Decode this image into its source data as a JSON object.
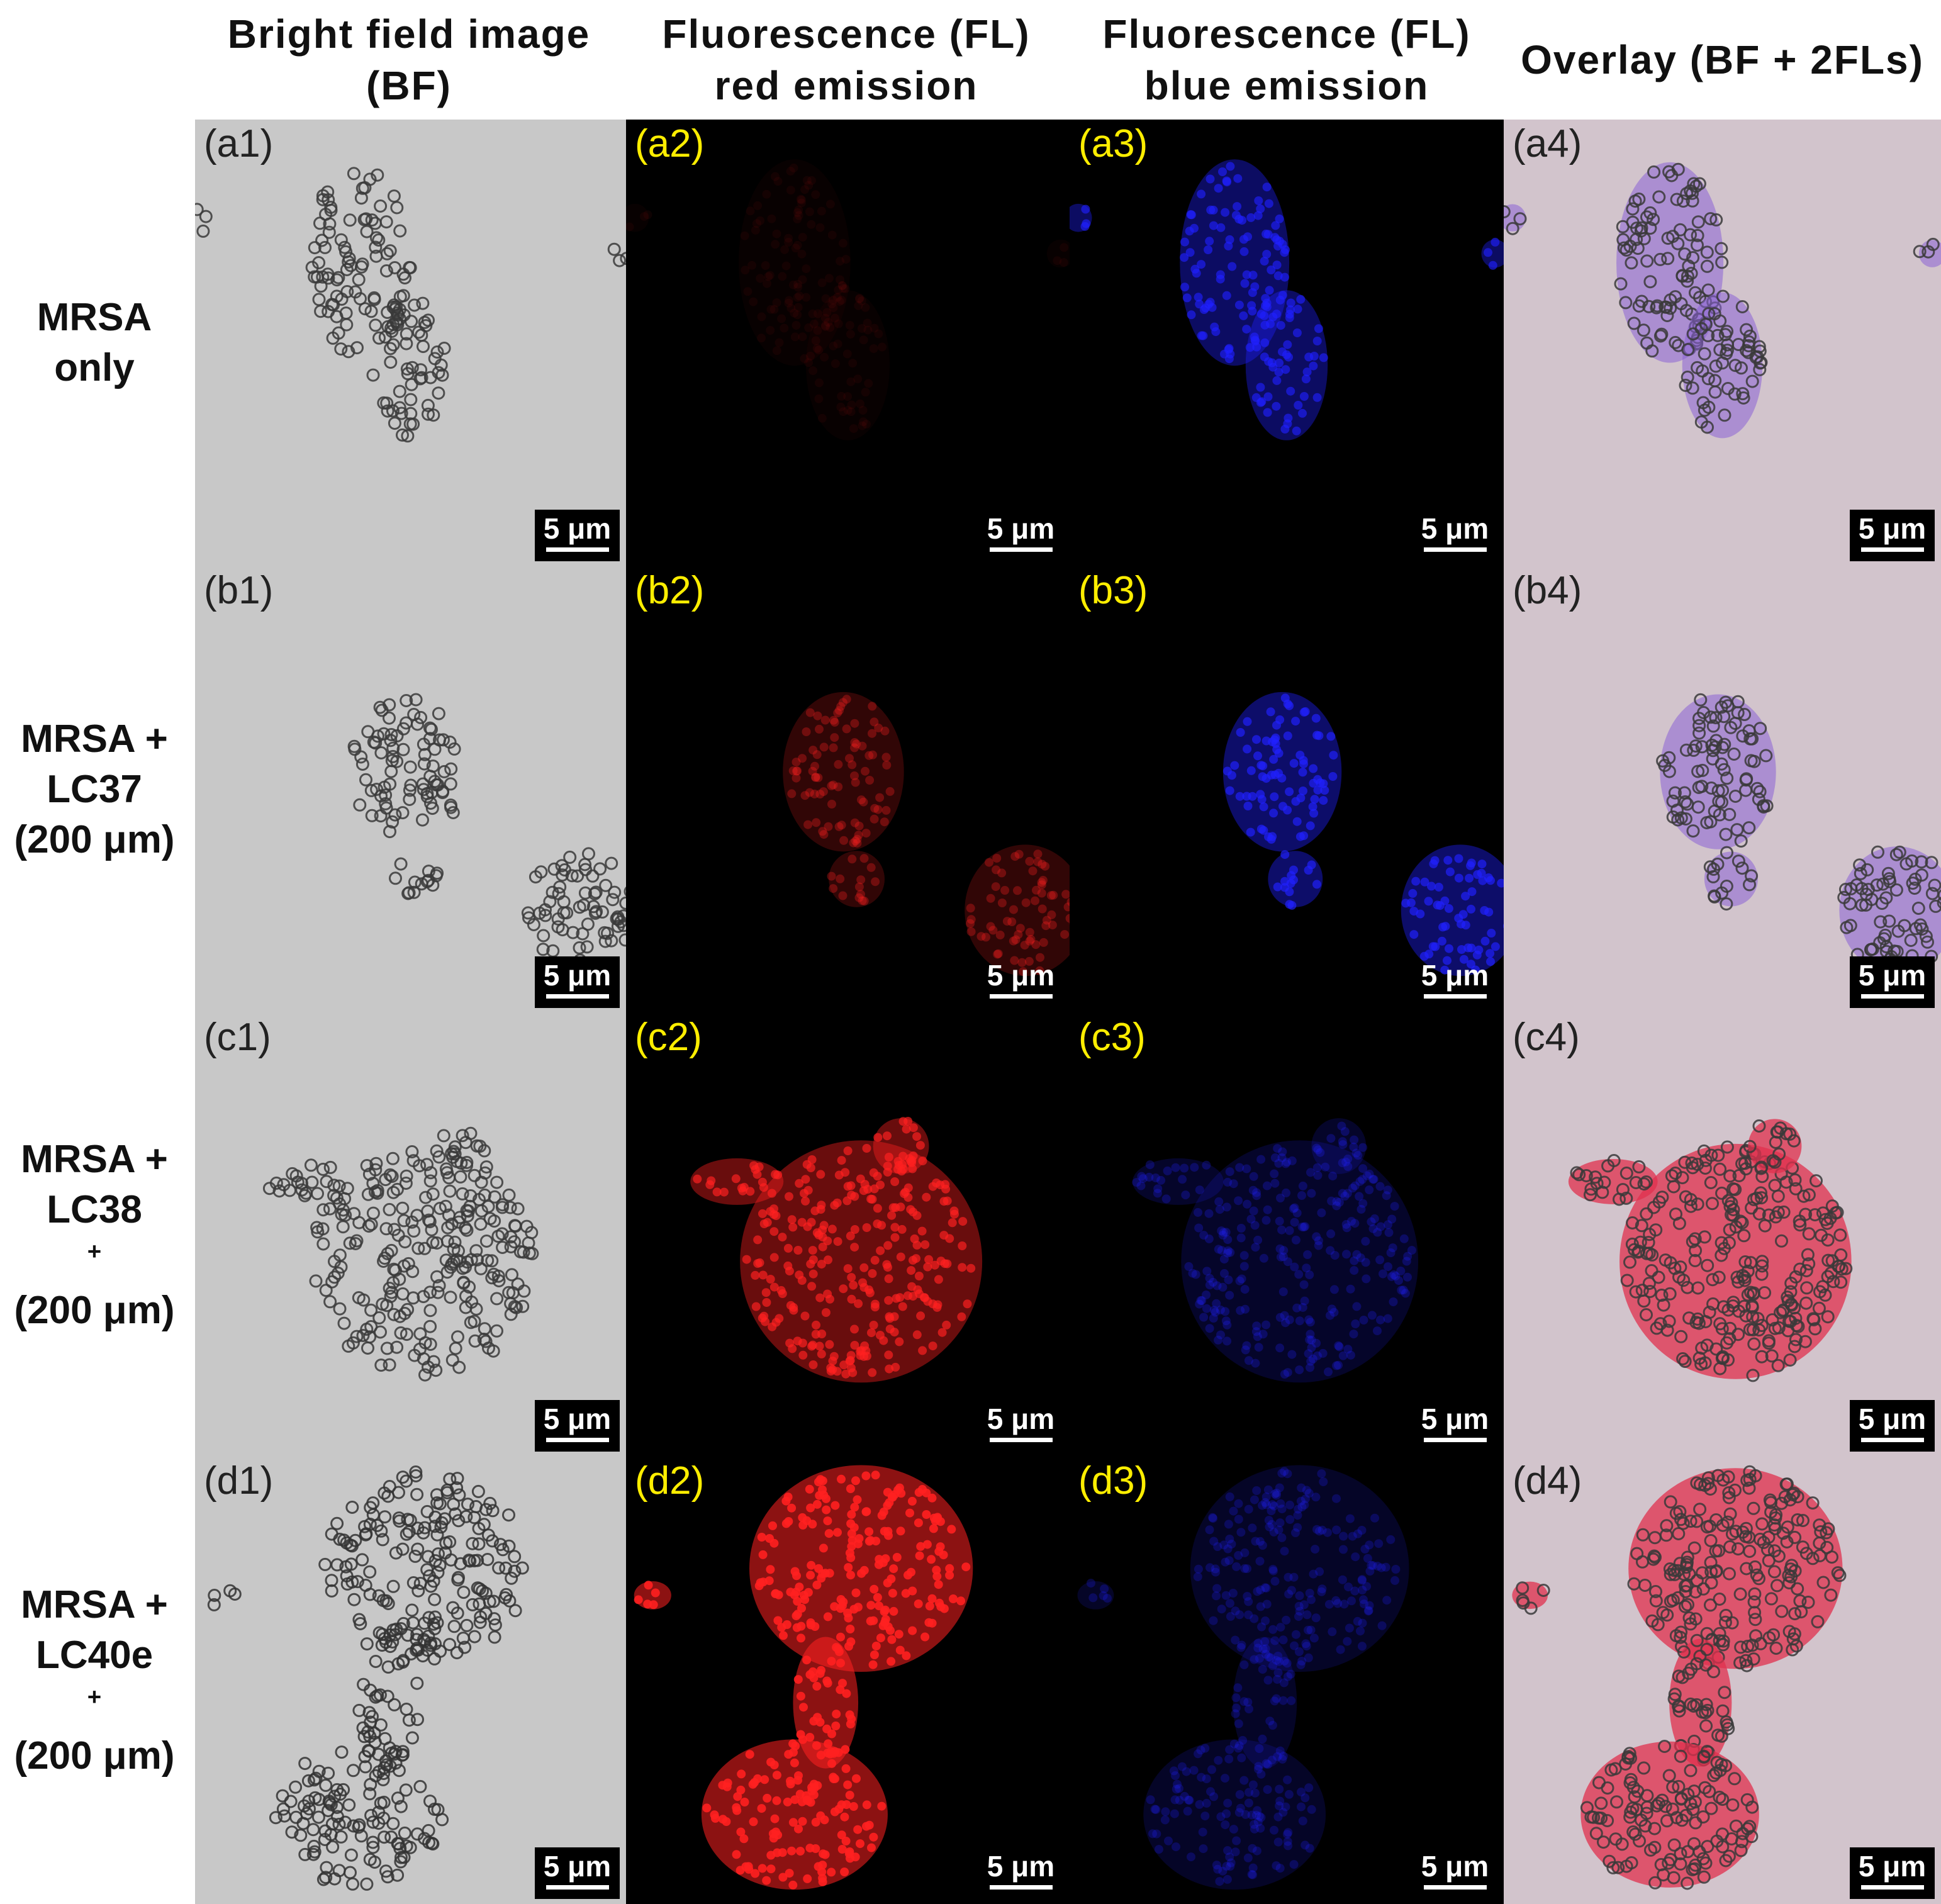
{
  "headers": {
    "bf": [
      "Bright field image",
      "(BF)"
    ],
    "red": [
      "Fluorescence (FL)",
      "red emission"
    ],
    "blue": [
      "Fluorescence (FL)",
      "blue emission"
    ],
    "overlay": [
      "Overlay (BF + 2FLs)"
    ]
  },
  "rows": [
    {
      "label_lines": [
        "MRSA",
        "only"
      ],
      "sup": "",
      "panels": [
        "(a1)",
        "(a2)",
        "(a3)",
        "(a4)"
      ]
    },
    {
      "label_lines": [
        "MRSA +",
        "LC37",
        "(200 μm)"
      ],
      "sup": "",
      "panels": [
        "(b1)",
        "(b2)",
        "(b3)",
        "(b4)"
      ]
    },
    {
      "label_lines": [
        "MRSA +",
        "LC38",
        "(200 μm)"
      ],
      "sup": "+",
      "panels": [
        "(c1)",
        "(c2)",
        "(c3)",
        "(c4)"
      ]
    },
    {
      "label_lines": [
        "MRSA +",
        "LC40e",
        "(200 μm)"
      ],
      "sup": "+",
      "panels": [
        "(d1)",
        "(d2)",
        "(d3)",
        "(d4)"
      ]
    }
  ],
  "scale_bar": "5 μm",
  "colors": {
    "bf_background": "#c8c8c8",
    "fl_background": "#000000",
    "overlay_background": "#d2c4cc",
    "label_dark": "#222222",
    "label_yellow": "#ffee00",
    "red_emission": "#ff2020",
    "blue_emission": "#2020ff",
    "overlay_purple": "#8a63d6",
    "overlay_red": "#e0304e"
  },
  "intensity": {
    "red": [
      0.06,
      0.35,
      0.75,
      1.0
    ],
    "blue": [
      0.7,
      0.75,
      0.3,
      0.28
    ]
  }
}
